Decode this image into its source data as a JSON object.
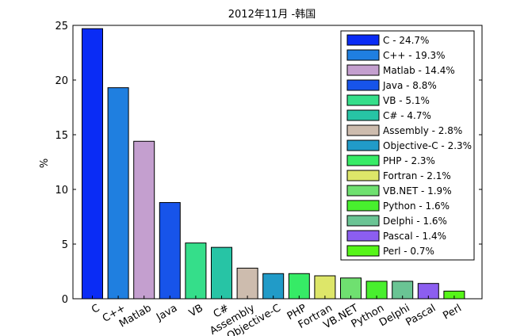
{
  "chart_data": {
    "type": "bar",
    "title": "2012年11月 -韩国",
    "xlabel": "",
    "ylabel": "%",
    "ylim": [
      0,
      25
    ],
    "yticks": [
      0,
      5,
      10,
      15,
      20,
      25
    ],
    "grid": false,
    "legend_position": "top-right",
    "categories": [
      "C",
      "C++",
      "Matlab",
      "Java",
      "VB",
      "C#",
      "Assembly",
      "Objective-C",
      "PHP",
      "Fortran",
      "VB.NET",
      "Python",
      "Delphi",
      "Pascal",
      "Perl"
    ],
    "values": [
      24.7,
      19.3,
      14.4,
      8.8,
      5.1,
      4.7,
      2.8,
      2.3,
      2.3,
      2.1,
      1.9,
      1.6,
      1.6,
      1.4,
      0.7
    ],
    "colors": [
      "#0a2cf5",
      "#1f7fe0",
      "#c49fcf",
      "#1754ea",
      "#35de8a",
      "#27c4a5",
      "#cdbcae",
      "#219bc8",
      "#36eb66",
      "#dde669",
      "#6fe070",
      "#48ef2e",
      "#6ac494",
      "#8c5ef0",
      "#56f518"
    ],
    "legend": [
      "C - 24.7%",
      "C++ - 19.3%",
      "Matlab - 14.4%",
      "Java - 8.8%",
      "VB - 5.1%",
      "C# - 4.7%",
      "Assembly - 2.8%",
      "Objective-C - 2.3%",
      "PHP - 2.3%",
      "Fortran - 2.1%",
      "VB.NET - 1.9%",
      "Python - 1.6%",
      "Delphi - 1.6%",
      "Pascal - 1.4%",
      "Perl - 0.7%"
    ]
  }
}
